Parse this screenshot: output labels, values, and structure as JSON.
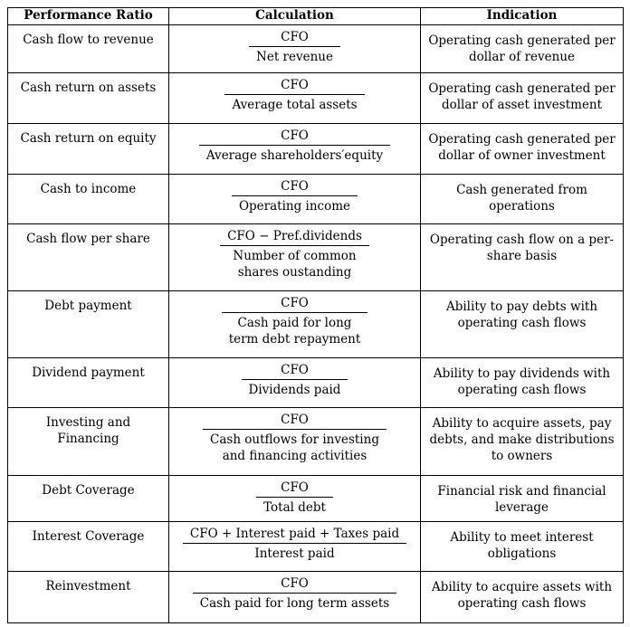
{
  "header": {
    "col1": "Performance Ratio",
    "col2": "Calculation",
    "col3": "Indication"
  },
  "rows": [
    {
      "ratio": "Cash flow to revenue",
      "numerator": "CFO",
      "denominator": "Net revenue",
      "indication": "Operating cash generated per\ndollar of revenue"
    },
    {
      "ratio": "Cash return on assets",
      "numerator": "CFO",
      "denominator": "Average total assets",
      "indication": "Operating cash generated per\ndollar of asset investment"
    },
    {
      "ratio": "Cash return on equity",
      "numerator": "CFO",
      "denominator": "Average shareholders′equity",
      "indication": "Operating cash generated per\ndollar of owner investment"
    },
    {
      "ratio": "Cash to income",
      "numerator": "CFO",
      "denominator": "Operating income",
      "indication": "Cash generated from\noperations"
    },
    {
      "ratio": "Cash flow per share",
      "numerator": "CFO − Pref.dividends",
      "denominator": "Number of common\nshares oustanding",
      "indication": "Operating cash flow on a per-\nshare basis"
    },
    {
      "ratio": "Debt payment",
      "numerator": "CFO",
      "denominator": "Cash paid for long\nterm debt repayment",
      "indication": "Ability to pay debts with\noperating cash flows"
    },
    {
      "ratio": "Dividend payment",
      "numerator": "CFO",
      "denominator": "Dividends paid",
      "indication": "Ability to pay dividends with\noperating cash flows"
    },
    {
      "ratio": "Investing and\nFinancing",
      "numerator": "CFO",
      "denominator": "Cash outflows for investing\nand financing activities",
      "indication": "Ability to acquire assets, pay\ndebts, and make distributions\nto owners"
    },
    {
      "ratio": "Debt Coverage",
      "numerator": "CFO",
      "denominator": "Total debt",
      "indication": "Financial risk and financial\nleverage"
    },
    {
      "ratio": "Interest Coverage",
      "numerator": "CFO  +  Interest paid  +  Taxes paid",
      "denominator": "Interest paid",
      "indication": "Ability to meet interest\nobligations"
    },
    {
      "ratio": "Reinvestment",
      "numerator": "CFO",
      "denominator": "Cash paid for long term assets",
      "indication": "Ability to acquire assets with\noperating cash flows"
    }
  ]
}
